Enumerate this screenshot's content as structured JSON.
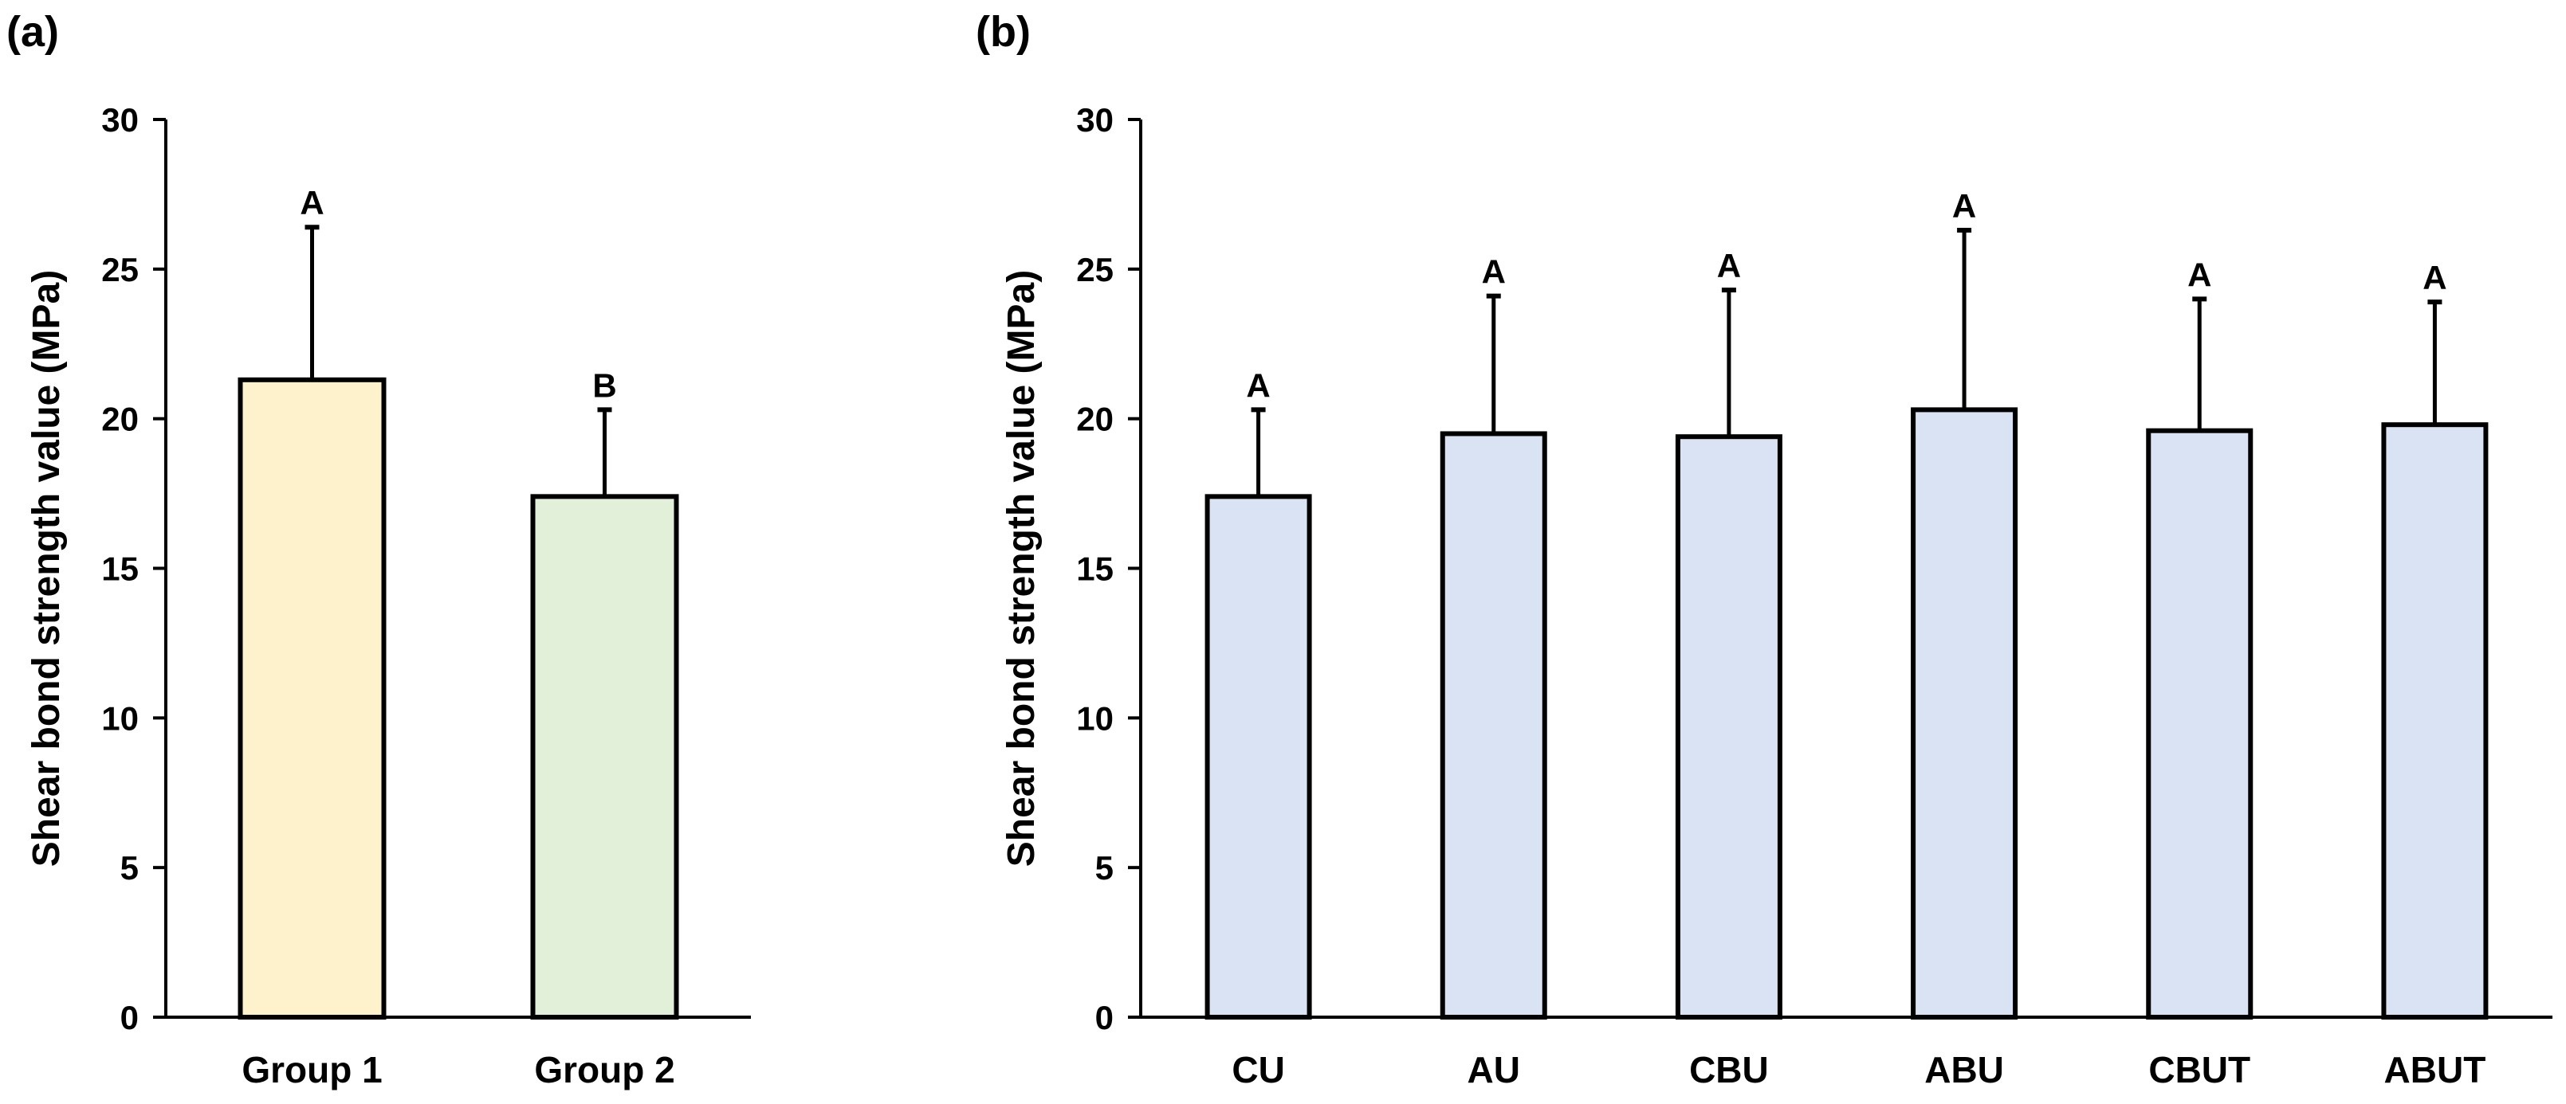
{
  "chart_data": [
    {
      "panel_label": "(a)",
      "type": "bar",
      "ylabel": "Shear bond strength value (MPa)",
      "ylim": [
        0,
        30
      ],
      "yticks": [
        "0",
        "5",
        "10",
        "15",
        "20",
        "25",
        "30"
      ],
      "categories": [
        "Group 1",
        "Group 2"
      ],
      "values": [
        21.3,
        17.4
      ],
      "errors": [
        5.1,
        2.9
      ],
      "significance": [
        "A",
        "B"
      ],
      "colors": [
        "#fef2cc",
        "#e2efd9"
      ]
    },
    {
      "panel_label": "(b)",
      "type": "bar",
      "ylabel": "Shear bond strength value (MPa)",
      "ylim": [
        0,
        30
      ],
      "yticks": [
        "0",
        "5",
        "10",
        "15",
        "20",
        "25",
        "30"
      ],
      "categories": [
        "CU",
        "AU",
        "CBU",
        "ABU",
        "CBUT",
        "ABUT"
      ],
      "values": [
        17.4,
        19.5,
        19.4,
        20.3,
        19.6,
        19.8
      ],
      "errors": [
        2.9,
        4.6,
        4.9,
        6.0,
        4.4,
        4.1
      ],
      "significance": [
        "A",
        "A",
        "A",
        "A",
        "A",
        "A"
      ],
      "colors": [
        "#dae3f3",
        "#dae3f3",
        "#dae3f3",
        "#dae3f3",
        "#dae3f3",
        "#dae3f3"
      ]
    }
  ]
}
